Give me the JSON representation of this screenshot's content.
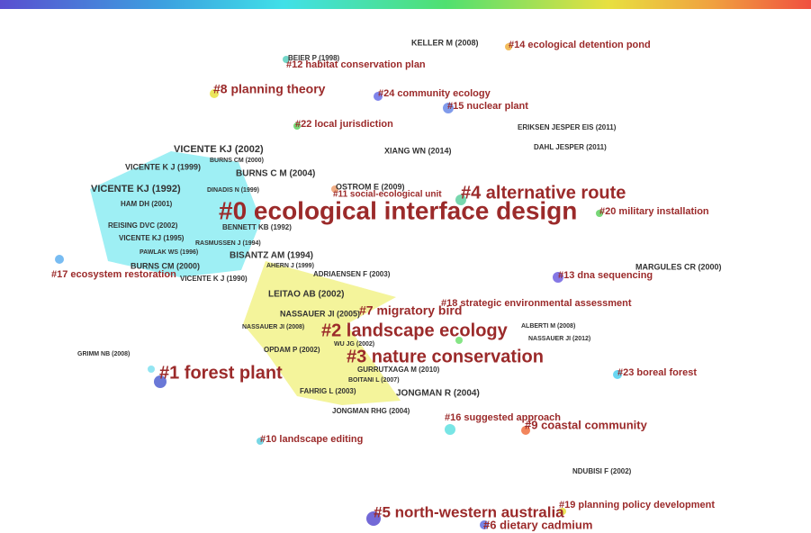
{
  "clusters": [
    "#0 ecological interface design",
    "#1 forest plant",
    "#2 landscape ecology",
    "#3 nature conservation",
    "#4 alternative route",
    "#5 north-western australia",
    "#6 dietary cadmium",
    "#7 migratory bird",
    "#8 planning theory",
    "#9 coastal community",
    "#10 landscape editing",
    "#11 social-ecological unit",
    "#12 habitat conservation plan",
    "#13 dna sequencing",
    "#14 ecological detention pond",
    "#15 nuclear plant",
    "#16 suggested approach",
    "#17 ecosystem restoration",
    "#18 strategic environmental assessment",
    "#19 planning policy development",
    "#20 military installation",
    "#22 local jurisdiction",
    "#23 boreal forest",
    "#24 community ecology"
  ],
  "authors": [
    "KELLER M (2008)",
    "BEIER P (1998)",
    "ERIKSEN JESPER EIS (2011)",
    "XIANG WN (2014)",
    "DAHL JESPER (2011)",
    "VICENTE KJ (2002)",
    "BURNS CM (2000)",
    "VICENTE K J (1999)",
    "BURNS C M (2004)",
    "VICENTE KJ (1992)",
    "DINADIS N (1999)",
    "OSTROM E (2009)",
    "HAM DH (2001)",
    "REISING DVC (2002)",
    "BENNETT KB (1992)",
    "VICENTE KJ (1995)",
    "RASMUSSEN J (1994)",
    "PAWLAK WS (1996)",
    "BISANTZ AM (1994)",
    "BURNS CM (2000)",
    "AHERN J (1999)",
    "ADRIAENSEN F (2003)",
    "VICENTE K J (1990)",
    "MARGULES CR (2000)",
    "LEITAO AB (2002)",
    "NASSAUER JI (2005)",
    "NASSAUER JI (2008)",
    "ALBERTI M (2008)",
    "NASSAUER JI (2012)",
    "WU JG (2002)",
    "OPDAM P (2002)",
    "GRIMM NB (2008)",
    "GURRUTXAGA M (2010)",
    "BOITANI L (2007)",
    "FAHRIG L (2003)",
    "JONGMAN R (2004)",
    "JONGMAN RHG (2004)",
    "NDUBISI F (2002)"
  ]
}
